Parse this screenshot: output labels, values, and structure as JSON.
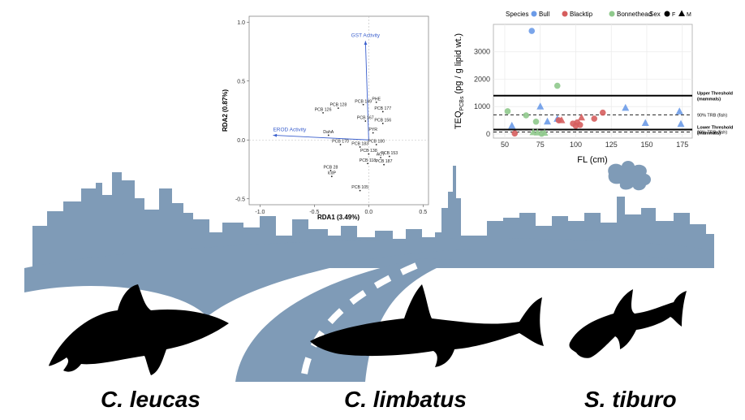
{
  "species_labels": [
    "C. leucas",
    "C. limbatus",
    "S. tiburo"
  ],
  "colors": {
    "city": "#7f9bb7",
    "bull": "#6b9be8",
    "blacktip": "#d65e5e",
    "bonnethead": "#8fc98c",
    "vector": "#3a5fcd"
  },
  "chart_data": [
    {
      "type": "scatter",
      "title": "",
      "xlabel": "RDA1 (3.49%)",
      "ylabel": "RDA2 (0.87%)",
      "xlim": [
        -1.1,
        0.55
      ],
      "ylim": [
        -0.55,
        1.05
      ],
      "xticks": [
        "-1.0",
        "-0.5",
        "0.0",
        "0.5"
      ],
      "xtick_values": [
        -1.0,
        -0.5,
        0.0,
        0.5
      ],
      "yticks": [
        "-0.5",
        "0.0",
        "0.5",
        "1.0"
      ],
      "ytick_values": [
        -0.5,
        0.0,
        0.5,
        1.0
      ],
      "grid": false,
      "vectors": [
        {
          "label": "GST Activity",
          "x": -0.03,
          "y": 0.84
        },
        {
          "label": "EROD Activity",
          "x": -0.88,
          "y": 0.04
        }
      ],
      "points": [
        {
          "label": "PCB 149",
          "x": -0.05,
          "y": 0.3
        },
        {
          "label": "PCB 128",
          "x": -0.28,
          "y": 0.27
        },
        {
          "label": "PCB 126",
          "x": -0.42,
          "y": 0.23
        },
        {
          "label": "PHE",
          "x": 0.07,
          "y": 0.32
        },
        {
          "label": "PCB 177",
          "x": 0.13,
          "y": 0.24
        },
        {
          "label": "PCB 167",
          "x": -0.03,
          "y": 0.16
        },
        {
          "label": "PCB 156",
          "x": 0.13,
          "y": 0.14
        },
        {
          "label": "PYR",
          "x": 0.04,
          "y": 0.06
        },
        {
          "label": "DahA",
          "x": -0.37,
          "y": 0.04
        },
        {
          "label": "PCB 170",
          "x": -0.26,
          "y": -0.04
        },
        {
          "label": "PCB 183",
          "x": -0.08,
          "y": -0.06
        },
        {
          "label": "PCB 180",
          "x": 0.07,
          "y": -0.04
        },
        {
          "label": "PCB 138",
          "x": 0.0,
          "y": -0.12
        },
        {
          "label": "ACY",
          "x": 0.11,
          "y": -0.15
        },
        {
          "label": "PCB 153",
          "x": 0.19,
          "y": -0.14
        },
        {
          "label": "PCB 118",
          "x": -0.01,
          "y": -0.2
        },
        {
          "label": "PCB 187",
          "x": 0.14,
          "y": -0.21
        },
        {
          "label": "PCB 28",
          "x": -0.35,
          "y": -0.26
        },
        {
          "label": "IcdP",
          "x": -0.34,
          "y": -0.31
        },
        {
          "label": "PCB 105",
          "x": -0.08,
          "y": -0.43
        }
      ]
    },
    {
      "type": "scatter",
      "title": "",
      "xlabel": "FL (cm)",
      "ylabel": "TEQ",
      "ylabel_sub": "PCBs",
      "ylabel_rest": " (pg / g lipid wt.)",
      "xlim": [
        42,
        182
      ],
      "ylim": [
        -150,
        4000
      ],
      "xticks": [
        "50",
        "75",
        "100",
        "125",
        "150",
        "175"
      ],
      "xtick_values": [
        50,
        75,
        100,
        125,
        150,
        175
      ],
      "yticks": [
        "0",
        "1000",
        "2000",
        "3000"
      ],
      "ytick_values": [
        0,
        1000,
        2000,
        3000
      ],
      "grid": true,
      "legend": {
        "placement": "top",
        "species_title": "Species",
        "species": [
          {
            "name": "Bull",
            "color": "#6b9be8"
          },
          {
            "name": "Blacktip",
            "color": "#d65e5e"
          },
          {
            "name": "Bonnethead",
            "color": "#8fc98c"
          }
        ],
        "sex_title": "Sex",
        "sex": [
          {
            "name": "F",
            "shape": "circle"
          },
          {
            "name": "M",
            "shape": "triangle"
          }
        ]
      },
      "thresholds": [
        {
          "label_1": "Upper Threshold",
          "label_2": "(mammals)",
          "value": 1400,
          "style": "solid-thick"
        },
        {
          "label_1": "90% TRB (fish)",
          "label_2": "",
          "value": 700,
          "style": "dashed"
        },
        {
          "label_1": "Lower Threshold",
          "label_2": "(mammals)",
          "value": 160,
          "style": "solid-thick"
        },
        {
          "label_1": "99% TRB (fish)",
          "label_2": "",
          "value": 70,
          "style": "dashed"
        }
      ],
      "series": [
        {
          "name": "Bull",
          "points": [
            {
              "x": 69,
              "y": 3760,
              "sex": "F"
            },
            {
              "x": 55,
              "y": 300,
              "sex": "M"
            },
            {
              "x": 75,
              "y": 1000,
              "sex": "M"
            },
            {
              "x": 80,
              "y": 450,
              "sex": "M"
            },
            {
              "x": 87,
              "y": 550,
              "sex": "M"
            },
            {
              "x": 135,
              "y": 950,
              "sex": "M"
            },
            {
              "x": 149,
              "y": 400,
              "sex": "M"
            },
            {
              "x": 173,
              "y": 820,
              "sex": "M"
            },
            {
              "x": 174,
              "y": 360,
              "sex": "M"
            }
          ]
        },
        {
          "name": "Blacktip",
          "points": [
            {
              "x": 57,
              "y": 20,
              "sex": "F"
            },
            {
              "x": 88,
              "y": 500,
              "sex": "F"
            },
            {
              "x": 98,
              "y": 380,
              "sex": "F"
            },
            {
              "x": 100,
              "y": 300,
              "sex": "F"
            },
            {
              "x": 101,
              "y": 420,
              "sex": "F"
            },
            {
              "x": 103,
              "y": 330,
              "sex": "F"
            },
            {
              "x": 113,
              "y": 560,
              "sex": "F"
            },
            {
              "x": 119,
              "y": 780,
              "sex": "F"
            },
            {
              "x": 90,
              "y": 500,
              "sex": "M"
            },
            {
              "x": 104,
              "y": 600,
              "sex": "M"
            }
          ]
        },
        {
          "name": "Bonnethead",
          "points": [
            {
              "x": 52,
              "y": 830,
              "sex": "F"
            },
            {
              "x": 65,
              "y": 680,
              "sex": "F"
            },
            {
              "x": 72,
              "y": 450,
              "sex": "F"
            },
            {
              "x": 76,
              "y": 10,
              "sex": "F"
            },
            {
              "x": 87,
              "y": 1760,
              "sex": "F"
            },
            {
              "x": 70,
              "y": 60,
              "sex": "M"
            },
            {
              "x": 73,
              "y": 50,
              "sex": "M"
            },
            {
              "x": 78,
              "y": 40,
              "sex": "M"
            }
          ]
        }
      ]
    }
  ]
}
